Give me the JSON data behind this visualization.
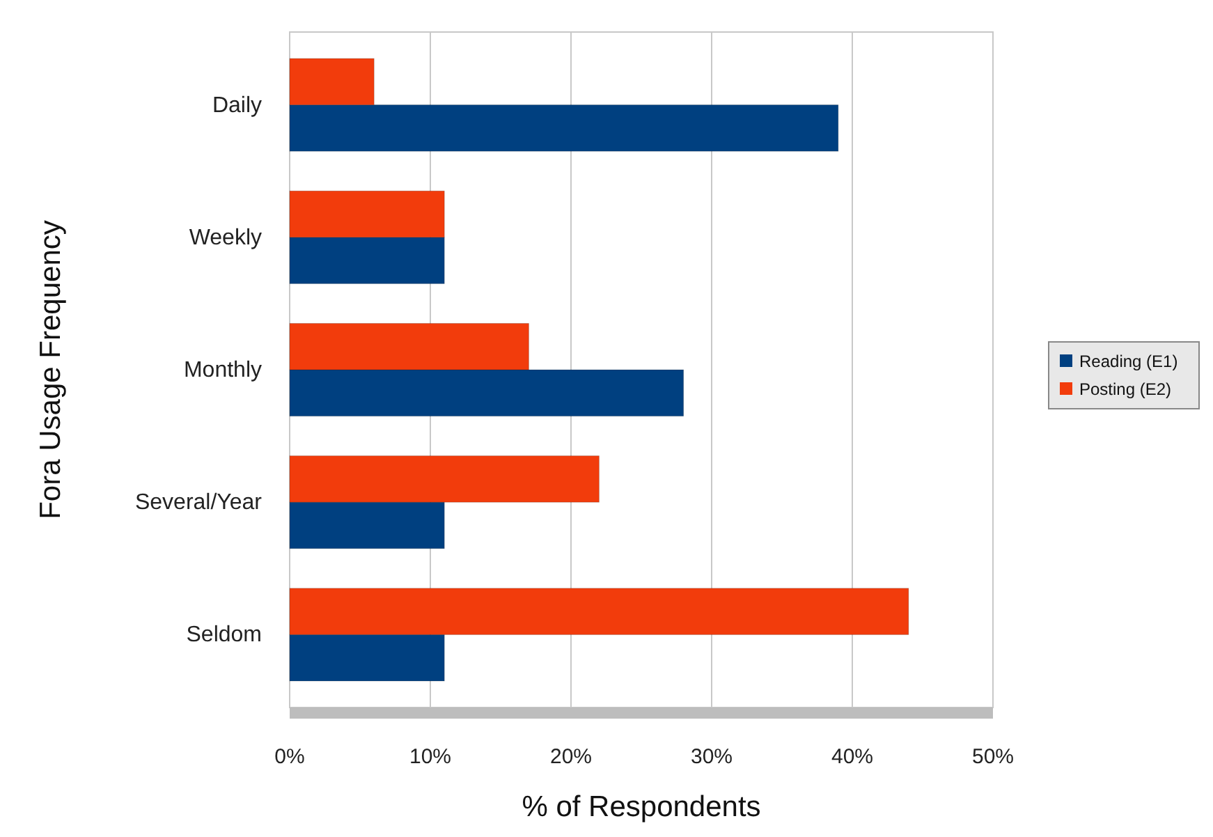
{
  "chart_data": {
    "type": "bar",
    "orientation": "horizontal",
    "xlabel": "% of Respondents",
    "ylabel": "Fora Usage Frequency",
    "categories": [
      "Daily",
      "Weekly",
      "Monthly",
      "Several/Year",
      "Seldom"
    ],
    "series": [
      {
        "name": "Reading (E1)",
        "color": "#004080",
        "values": [
          39,
          11,
          28,
          11,
          11
        ]
      },
      {
        "name": "Posting (E2)",
        "color": "#f23c0c",
        "values": [
          6,
          11,
          17,
          22,
          44
        ]
      }
    ],
    "xlim": [
      0,
      50
    ],
    "xticks": [
      {
        "value": 0,
        "label": "0%"
      },
      {
        "value": 10,
        "label": "10%"
      },
      {
        "value": 20,
        "label": "20%"
      },
      {
        "value": 30,
        "label": "30%"
      },
      {
        "value": 40,
        "label": "40%"
      },
      {
        "value": 50,
        "label": "50%"
      }
    ],
    "grid": "x",
    "legend": "right"
  }
}
